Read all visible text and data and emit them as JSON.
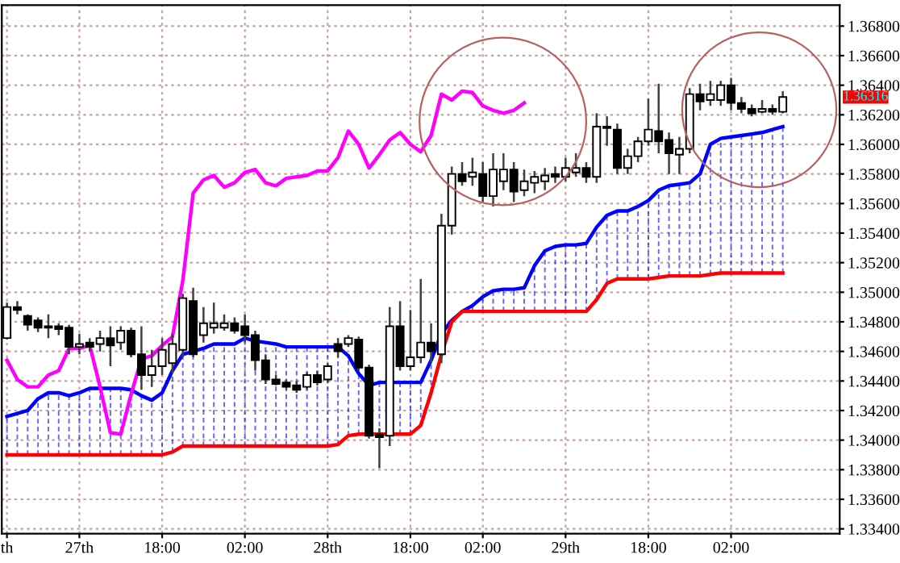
{
  "chart_data": {
    "type": "candlestick",
    "categories": [
      "th",
      null,
      null,
      null,
      null,
      null,
      null,
      "27th",
      null,
      null,
      null,
      null,
      null,
      null,
      null,
      "18:00",
      null,
      null,
      null,
      null,
      null,
      null,
      null,
      "02:00",
      null,
      null,
      null,
      null,
      null,
      null,
      null,
      "28th",
      null,
      null,
      null,
      null,
      null,
      null,
      null,
      "18:00",
      null,
      null,
      null,
      null,
      null,
      null,
      "02:00",
      null,
      null,
      null,
      null,
      null,
      null,
      null,
      "29th",
      null,
      null,
      null,
      null,
      null,
      null,
      null,
      "18:00",
      null,
      null,
      null,
      null,
      null,
      null,
      null,
      "02:00",
      null,
      null,
      null,
      null,
      null,
      null,
      null,
      null,
      null,
      null
    ],
    "ohlc": [
      [
        1.3469,
        1.3493,
        1.3468,
        1.349
      ],
      [
        1.349,
        1.3494,
        1.3485,
        1.3488
      ],
      [
        1.3484,
        1.3485,
        1.3474,
        1.3478
      ],
      [
        1.3481,
        1.3483,
        1.3473,
        1.3476
      ],
      [
        1.3477,
        1.3485,
        1.3469,
        1.3476
      ],
      [
        1.3477,
        1.3479,
        1.3471,
        1.3475
      ],
      [
        1.3476,
        1.3478,
        1.3458,
        1.3463
      ],
      [
        1.3463,
        1.3472,
        1.3458,
        1.3465
      ],
      [
        1.3466,
        1.3469,
        1.346,
        1.3463
      ],
      [
        1.3465,
        1.3474,
        1.346,
        1.3469
      ],
      [
        1.3469,
        1.3477,
        1.345,
        1.3464
      ],
      [
        1.3466,
        1.3477,
        1.3461,
        1.3474
      ],
      [
        1.3474,
        1.3476,
        1.3456,
        1.3458
      ],
      [
        1.3458,
        1.3477,
        1.3434,
        1.3444
      ],
      [
        1.3444,
        1.3461,
        1.3436,
        1.345
      ],
      [
        1.345,
        1.3469,
        1.3444,
        1.3461
      ],
      [
        1.3452,
        1.3472,
        1.3445,
        1.3465
      ],
      [
        1.3461,
        1.3499,
        1.3456,
        1.3496
      ],
      [
        1.3494,
        1.3503,
        1.3456,
        1.3458
      ],
      [
        1.3471,
        1.349,
        1.3466,
        1.3479
      ],
      [
        1.3476,
        1.3493,
        1.3472,
        1.3479
      ],
      [
        1.3476,
        1.3485,
        1.3474,
        1.3479
      ],
      [
        1.3479,
        1.3483,
        1.3472,
        1.3474
      ],
      [
        1.3477,
        1.3485,
        1.3466,
        1.3471
      ],
      [
        1.3471,
        1.3474,
        1.3447,
        1.3454
      ],
      [
        1.3454,
        1.3458,
        1.3438,
        1.3441
      ],
      [
        1.3441,
        1.3444,
        1.3437,
        1.3438
      ],
      [
        1.3439,
        1.3441,
        1.3434,
        1.3436
      ],
      [
        1.3437,
        1.344,
        1.3432,
        1.3434
      ],
      [
        1.3436,
        1.3446,
        1.3434,
        1.3444
      ],
      [
        1.3444,
        1.3447,
        1.3437,
        1.3439
      ],
      [
        1.3441,
        1.3452,
        1.3439,
        1.345
      ],
      [
        1.3465,
        1.3469,
        1.3456,
        1.346
      ],
      [
        1.3465,
        1.3471,
        1.3463,
        1.3469
      ],
      [
        1.3468,
        1.347,
        1.3447,
        1.3449
      ],
      [
        1.3449,
        1.3451,
        1.3401,
        1.3403
      ],
      [
        1.3404,
        1.3408,
        1.3381,
        1.3402
      ],
      [
        1.3403,
        1.349,
        1.3396,
        1.3477
      ],
      [
        1.3477,
        1.3494,
        1.3447,
        1.345
      ],
      [
        1.345,
        1.3488,
        1.3447,
        1.3456
      ],
      [
        1.3456,
        1.3509,
        1.3452,
        1.3466
      ],
      [
        1.3466,
        1.3479,
        1.3452,
        1.346
      ],
      [
        1.3458,
        1.3553,
        1.3452,
        1.3545
      ],
      [
        1.3545,
        1.3585,
        1.3539,
        1.358
      ],
      [
        1.358,
        1.3588,
        1.3572,
        1.3575
      ],
      [
        1.3578,
        1.3591,
        1.3572,
        1.3581
      ],
      [
        1.358,
        1.3588,
        1.3561,
        1.3565
      ],
      [
        1.3565,
        1.3594,
        1.3558,
        1.3583
      ],
      [
        1.3575,
        1.3594,
        1.3569,
        1.3583
      ],
      [
        1.3583,
        1.3588,
        1.3561,
        1.3568
      ],
      [
        1.3569,
        1.3583,
        1.3565,
        1.3575
      ],
      [
        1.3574,
        1.3582,
        1.3567,
        1.3578
      ],
      [
        1.3575,
        1.3584,
        1.3569,
        1.3579
      ],
      [
        1.358,
        1.3585,
        1.3574,
        1.3578
      ],
      [
        1.3578,
        1.3591,
        1.3575,
        1.3584
      ],
      [
        1.3581,
        1.3594,
        1.3578,
        1.3584
      ],
      [
        1.3584,
        1.3588,
        1.3574,
        1.3578
      ],
      [
        1.3578,
        1.3621,
        1.3574,
        1.3612
      ],
      [
        1.3612,
        1.3619,
        1.3599,
        1.3611
      ],
      [
        1.361,
        1.3614,
        1.358,
        1.3584
      ],
      [
        1.3584,
        1.3597,
        1.358,
        1.3592
      ],
      [
        1.3592,
        1.3605,
        1.3588,
        1.3602
      ],
      [
        1.3602,
        1.3631,
        1.3599,
        1.361
      ],
      [
        1.3609,
        1.3641,
        1.3594,
        1.3602
      ],
      [
        1.3603,
        1.3608,
        1.358,
        1.3594
      ],
      [
        1.3593,
        1.3605,
        1.358,
        1.3597
      ],
      [
        1.3597,
        1.3638,
        1.3594,
        1.3634
      ],
      [
        1.3634,
        1.3641,
        1.3623,
        1.3629
      ],
      [
        1.363,
        1.3643,
        1.3626,
        1.3634
      ],
      [
        1.363,
        1.3643,
        1.3626,
        1.364
      ],
      [
        1.364,
        1.3645,
        1.3623,
        1.3628
      ],
      [
        1.3628,
        1.3632,
        1.3621,
        1.3624
      ],
      [
        1.3624,
        1.3627,
        1.3619,
        1.3621
      ],
      [
        1.3622,
        1.363,
        1.3621,
        1.3624
      ],
      [
        1.3624,
        1.3627,
        1.362,
        1.3622
      ],
      [
        1.3622,
        1.3636,
        1.3621,
        1.3632
      ],
      null,
      null,
      null,
      null,
      null
    ],
    "series": [
      {
        "type": "line",
        "color": "#0000ff",
        "values": [
          1.3416,
          1.3418,
          1.342,
          1.3428,
          1.3432,
          1.3432,
          1.343,
          1.3432,
          1.3435,
          1.3435,
          1.3435,
          1.3435,
          1.3434,
          1.343,
          1.3427,
          1.3432,
          1.3447,
          1.3458,
          1.346,
          1.3462,
          1.3465,
          1.3465,
          1.3465,
          1.3469,
          1.3467,
          1.3466,
          1.3465,
          1.3463,
          1.3463,
          1.3463,
          1.3463,
          1.3463,
          1.3463,
          1.3457,
          1.3445,
          1.3437,
          1.3439,
          1.3439,
          1.3439,
          1.3439,
          1.3439,
          1.3454,
          1.3472,
          1.3481,
          1.3487,
          1.3491,
          1.3497,
          1.3501,
          1.3502,
          1.3502,
          1.3503,
          1.3518,
          1.3528,
          1.3531,
          1.3532,
          1.3532,
          1.3533,
          1.3544,
          1.3552,
          1.3555,
          1.3555,
          1.3558,
          1.3562,
          1.3569,
          1.3572,
          1.3573,
          1.3574,
          1.358,
          1.36,
          1.3604,
          1.3605,
          1.3606,
          1.3607,
          1.3608,
          1.361,
          1.3612,
          null,
          null,
          null,
          null,
          null
        ]
      },
      {
        "type": "line",
        "color": "#ff0000",
        "values": [
          1.339,
          1.339,
          1.339,
          1.339,
          1.339,
          1.339,
          1.339,
          1.339,
          1.339,
          1.339,
          1.339,
          1.339,
          1.339,
          1.339,
          1.339,
          1.339,
          1.3392,
          1.3396,
          1.3396,
          1.3396,
          1.3396,
          1.3396,
          1.3396,
          1.3396,
          1.3396,
          1.3396,
          1.3396,
          1.3396,
          1.3396,
          1.3396,
          1.3396,
          1.3396,
          1.3397,
          1.3403,
          1.3404,
          1.3404,
          1.3404,
          1.3404,
          1.3404,
          1.3404,
          1.341,
          1.3432,
          1.3458,
          1.348,
          1.3487,
          1.3487,
          1.3487,
          1.3487,
          1.3487,
          1.3487,
          1.3487,
          1.3487,
          1.3487,
          1.3487,
          1.3487,
          1.3487,
          1.3487,
          1.3495,
          1.3506,
          1.3509,
          1.3509,
          1.3509,
          1.3509,
          1.351,
          1.3511,
          1.3511,
          1.3511,
          1.3511,
          1.3512,
          1.3513,
          1.3513,
          1.3513,
          1.3513,
          1.3513,
          1.3513,
          1.3513,
          null,
          null,
          null,
          null,
          null
        ]
      },
      {
        "type": "line",
        "color": "#ff00ff",
        "values": [
          1.3454,
          1.3441,
          1.3436,
          1.3436,
          1.3444,
          1.3447,
          1.3462,
          1.3462,
          1.3464,
          1.3436,
          1.3405,
          1.3404,
          1.3431,
          1.3455,
          1.3457,
          1.3464,
          1.347,
          1.3508,
          1.3567,
          1.3576,
          1.3579,
          1.3571,
          1.3574,
          1.3581,
          1.3583,
          1.3574,
          1.3572,
          1.3577,
          1.3578,
          1.3579,
          1.3582,
          1.3582,
          1.3591,
          1.3609,
          1.36,
          1.3584,
          1.3593,
          1.3603,
          1.3608,
          1.36,
          1.3595,
          1.3606,
          1.3634,
          1.363,
          1.3636,
          1.3635,
          1.3626,
          1.3623,
          1.3621,
          1.3623,
          1.3628,
          null,
          null,
          null,
          null,
          null,
          null,
          null,
          null,
          null,
          null,
          null,
          null,
          null,
          null,
          null,
          null,
          null,
          null,
          null,
          null,
          null,
          null,
          null,
          null,
          null,
          null,
          null,
          null,
          null,
          null
        ]
      }
    ],
    "ylim": [
      1.33367,
      1.36942
    ],
    "yticks": [
      {
        "value": 1.334,
        "label": "1.33400"
      },
      {
        "value": 1.336,
        "label": "1.33600"
      },
      {
        "value": 1.338,
        "label": "1.33800"
      },
      {
        "value": 1.34,
        "label": "1.34000"
      },
      {
        "value": 1.342,
        "label": "1.34200"
      },
      {
        "value": 1.344,
        "label": "1.34400"
      },
      {
        "value": 1.346,
        "label": "1.34600"
      },
      {
        "value": 1.348,
        "label": "1.34800"
      },
      {
        "value": 1.35,
        "label": "1.35000"
      },
      {
        "value": 1.352,
        "label": "1.35200"
      },
      {
        "value": 1.354,
        "label": "1.35400"
      },
      {
        "value": 1.356,
        "label": "1.35600"
      },
      {
        "value": 1.358,
        "label": "1.35800"
      },
      {
        "value": 1.36,
        "label": "1.36000"
      },
      {
        "value": 1.362,
        "label": "1.36200"
      },
      {
        "value": 1.364,
        "label": "1.36400"
      },
      {
        "value": 1.366,
        "label": "1.36600"
      },
      {
        "value": 1.368,
        "label": "1.36800"
      }
    ],
    "annotations": [
      "1.36316"
    ],
    "grid": true,
    "legend": false
  }
}
